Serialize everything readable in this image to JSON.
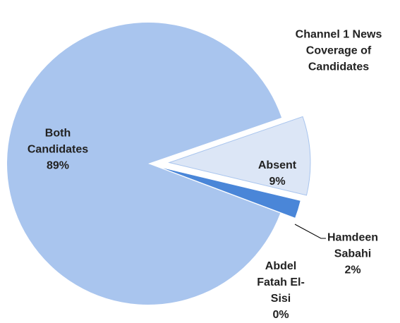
{
  "chart_data": {
    "type": "pie",
    "title": "Channel 1 News Coverage of Candidates",
    "categories": [
      "Absent",
      "Hamdeen Sabahi",
      "Abdel Fatah El-Sisi",
      "Both Candidates"
    ],
    "values": [
      9,
      2,
      0,
      89
    ],
    "value_labels": [
      "9%",
      "2%",
      "0%",
      "89%"
    ],
    "colors": [
      "#dce6f6",
      "#4a86d8",
      "#2f5fa8",
      "#a9c5ee"
    ]
  }
}
